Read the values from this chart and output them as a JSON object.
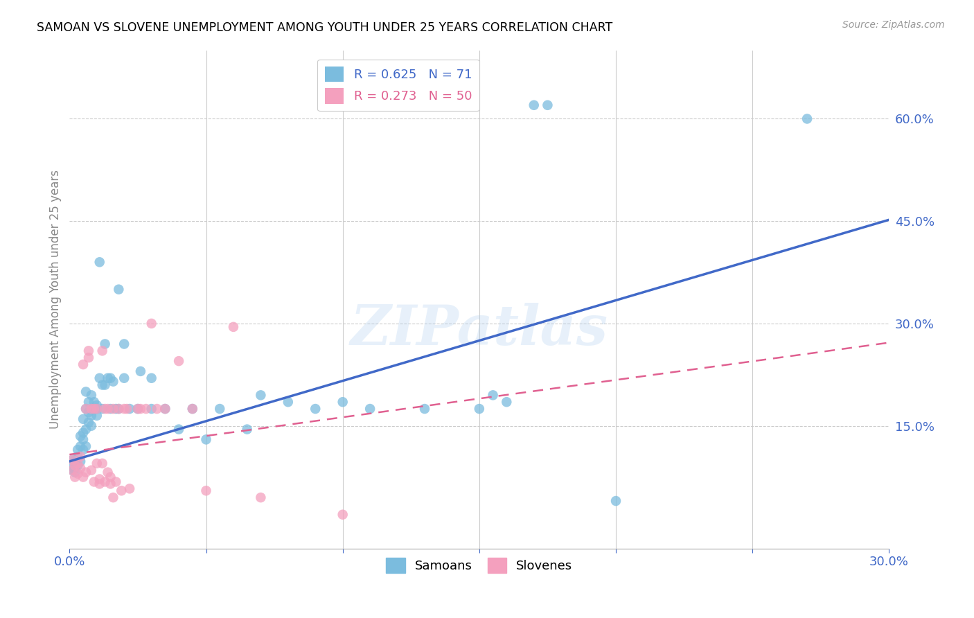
{
  "title": "SAMOAN VS SLOVENE UNEMPLOYMENT AMONG YOUTH UNDER 25 YEARS CORRELATION CHART",
  "source": "Source: ZipAtlas.com",
  "ylabel": "Unemployment Among Youth under 25 years",
  "ytick_labels": [
    "60.0%",
    "45.0%",
    "30.0%",
    "15.0%"
  ],
  "ytick_values": [
    0.6,
    0.45,
    0.3,
    0.15
  ],
  "xlim": [
    0.0,
    0.3
  ],
  "ylim": [
    -0.03,
    0.7
  ],
  "samoan_color": "#7bbcde",
  "slovene_color": "#f4a0be",
  "trendline_samoan_color": "#4169c8",
  "trendline_slovene_color": "#e06090",
  "watermark": "ZIPatlas",
  "samoan_trendline": [
    [
      0.0,
      0.098
    ],
    [
      0.3,
      0.452
    ]
  ],
  "slovene_trendline": [
    [
      0.0,
      0.108
    ],
    [
      0.3,
      0.272
    ]
  ],
  "samoan_points": [
    [
      0.001,
      0.1
    ],
    [
      0.001,
      0.09
    ],
    [
      0.001,
      0.085
    ],
    [
      0.002,
      0.095
    ],
    [
      0.002,
      0.1
    ],
    [
      0.002,
      0.088
    ],
    [
      0.002,
      0.082
    ],
    [
      0.003,
      0.092
    ],
    [
      0.003,
      0.105
    ],
    [
      0.003,
      0.115
    ],
    [
      0.004,
      0.098
    ],
    [
      0.004,
      0.12
    ],
    [
      0.004,
      0.135
    ],
    [
      0.005,
      0.115
    ],
    [
      0.005,
      0.13
    ],
    [
      0.005,
      0.14
    ],
    [
      0.005,
      0.16
    ],
    [
      0.006,
      0.12
    ],
    [
      0.006,
      0.145
    ],
    [
      0.006,
      0.175
    ],
    [
      0.006,
      0.2
    ],
    [
      0.007,
      0.185
    ],
    [
      0.007,
      0.155
    ],
    [
      0.007,
      0.17
    ],
    [
      0.008,
      0.165
    ],
    [
      0.008,
      0.15
    ],
    [
      0.008,
      0.195
    ],
    [
      0.009,
      0.175
    ],
    [
      0.009,
      0.185
    ],
    [
      0.01,
      0.18
    ],
    [
      0.01,
      0.165
    ],
    [
      0.01,
      0.175
    ],
    [
      0.011,
      0.39
    ],
    [
      0.011,
      0.22
    ],
    [
      0.012,
      0.21
    ],
    [
      0.012,
      0.175
    ],
    [
      0.013,
      0.27
    ],
    [
      0.013,
      0.21
    ],
    [
      0.014,
      0.22
    ],
    [
      0.015,
      0.175
    ],
    [
      0.015,
      0.22
    ],
    [
      0.016,
      0.215
    ],
    [
      0.017,
      0.175
    ],
    [
      0.018,
      0.35
    ],
    [
      0.018,
      0.175
    ],
    [
      0.02,
      0.22
    ],
    [
      0.02,
      0.27
    ],
    [
      0.022,
      0.175
    ],
    [
      0.025,
      0.175
    ],
    [
      0.026,
      0.23
    ],
    [
      0.03,
      0.175
    ],
    [
      0.03,
      0.22
    ],
    [
      0.035,
      0.175
    ],
    [
      0.04,
      0.145
    ],
    [
      0.045,
      0.175
    ],
    [
      0.05,
      0.13
    ],
    [
      0.055,
      0.175
    ],
    [
      0.065,
      0.145
    ],
    [
      0.07,
      0.195
    ],
    [
      0.08,
      0.185
    ],
    [
      0.09,
      0.175
    ],
    [
      0.1,
      0.185
    ],
    [
      0.11,
      0.175
    ],
    [
      0.13,
      0.175
    ],
    [
      0.15,
      0.175
    ],
    [
      0.155,
      0.195
    ],
    [
      0.16,
      0.185
    ],
    [
      0.17,
      0.62
    ],
    [
      0.175,
      0.62
    ],
    [
      0.27,
      0.6
    ],
    [
      0.2,
      0.04
    ]
  ],
  "slovene_points": [
    [
      0.001,
      0.1
    ],
    [
      0.001,
      0.085
    ],
    [
      0.002,
      0.075
    ],
    [
      0.002,
      0.092
    ],
    [
      0.003,
      0.08
    ],
    [
      0.003,
      0.095
    ],
    [
      0.004,
      0.088
    ],
    [
      0.004,
      0.105
    ],
    [
      0.005,
      0.075
    ],
    [
      0.005,
      0.24
    ],
    [
      0.006,
      0.082
    ],
    [
      0.006,
      0.175
    ],
    [
      0.007,
      0.26
    ],
    [
      0.007,
      0.25
    ],
    [
      0.008,
      0.175
    ],
    [
      0.008,
      0.085
    ],
    [
      0.009,
      0.175
    ],
    [
      0.009,
      0.068
    ],
    [
      0.01,
      0.095
    ],
    [
      0.01,
      0.175
    ],
    [
      0.011,
      0.065
    ],
    [
      0.011,
      0.072
    ],
    [
      0.012,
      0.26
    ],
    [
      0.012,
      0.095
    ],
    [
      0.013,
      0.175
    ],
    [
      0.013,
      0.068
    ],
    [
      0.014,
      0.175
    ],
    [
      0.014,
      0.082
    ],
    [
      0.015,
      0.065
    ],
    [
      0.015,
      0.075
    ],
    [
      0.016,
      0.045
    ],
    [
      0.016,
      0.175
    ],
    [
      0.017,
      0.068
    ],
    [
      0.018,
      0.175
    ],
    [
      0.019,
      0.055
    ],
    [
      0.02,
      0.175
    ],
    [
      0.021,
      0.175
    ],
    [
      0.022,
      0.058
    ],
    [
      0.025,
      0.175
    ],
    [
      0.026,
      0.175
    ],
    [
      0.028,
      0.175
    ],
    [
      0.03,
      0.3
    ],
    [
      0.032,
      0.175
    ],
    [
      0.035,
      0.175
    ],
    [
      0.04,
      0.245
    ],
    [
      0.045,
      0.175
    ],
    [
      0.05,
      0.055
    ],
    [
      0.06,
      0.295
    ],
    [
      0.07,
      0.045
    ],
    [
      0.1,
      0.02
    ]
  ]
}
